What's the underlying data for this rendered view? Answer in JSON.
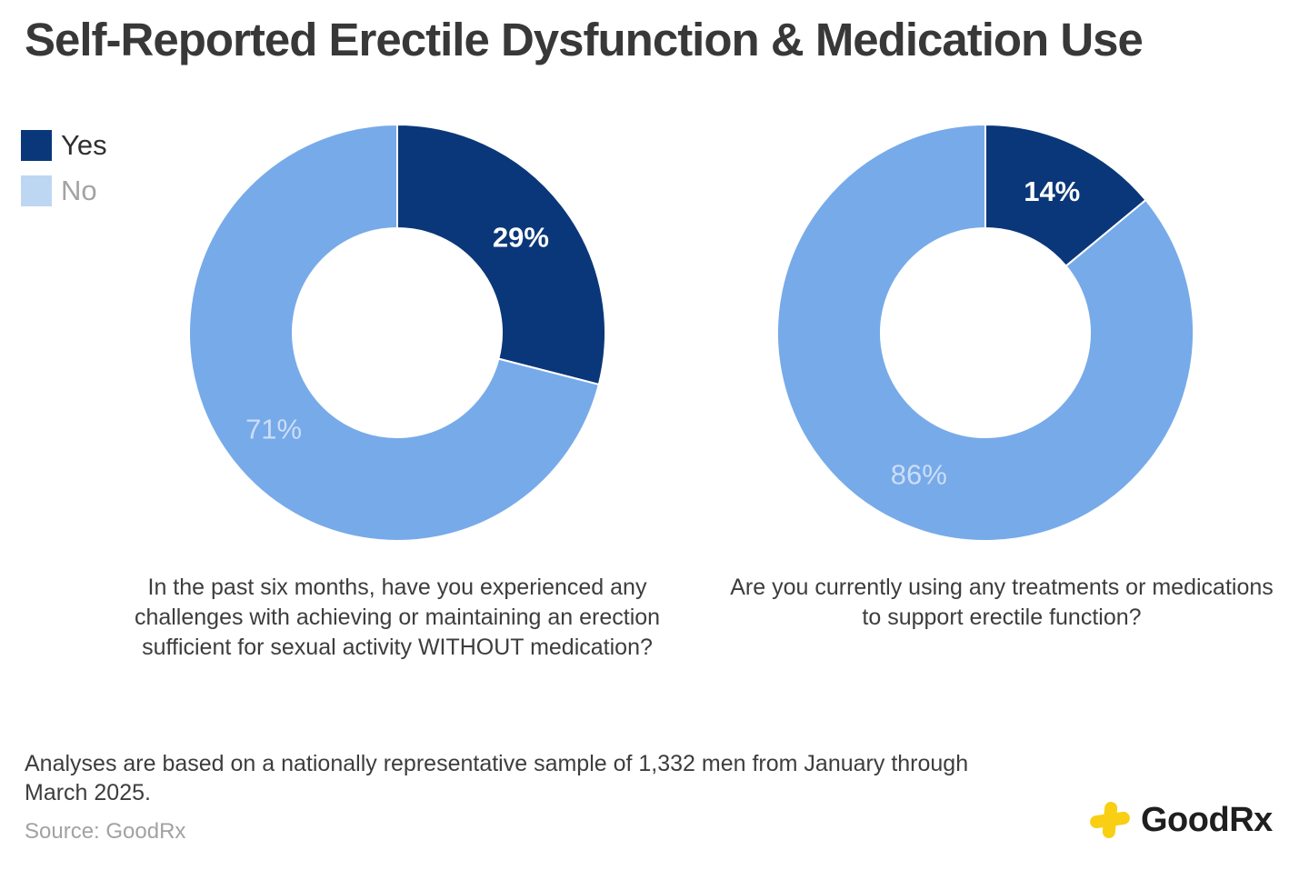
{
  "title": "Self-Reported Erectile Dysfunction & Medication Use",
  "legend": {
    "items": [
      {
        "label": "Yes",
        "color": "#0a3779",
        "text_color": "#2f2f2f"
      },
      {
        "label": "No",
        "color": "#bdd7f3",
        "text_color": "#a3a3a3"
      }
    ]
  },
  "chart_data": [
    {
      "type": "pie",
      "subtype": "donut",
      "question": "In the past six months, have you experienced any challenges with achieving or maintaining an erection sufficient for sexual activity WITHOUT medication?",
      "categories": [
        "Yes",
        "No"
      ],
      "values": [
        29,
        71
      ],
      "labels": [
        "29%",
        "71%"
      ],
      "colors": [
        "#0a3779",
        "#77aae9"
      ],
      "label_colors": [
        "#ffffff",
        "#cbdef6"
      ],
      "start_angle_deg": 0,
      "direction": "clockwise",
      "legend_position": "top-left"
    },
    {
      "type": "pie",
      "subtype": "donut",
      "question": "Are you currently using any treatments or medications to support erectile function?",
      "categories": [
        "Yes",
        "No"
      ],
      "values": [
        14,
        86
      ],
      "labels": [
        "14%",
        "86%"
      ],
      "colors": [
        "#0a3779",
        "#77aae9"
      ],
      "label_colors": [
        "#ffffff",
        "#cbdef6"
      ],
      "start_angle_deg": 0,
      "direction": "clockwise",
      "legend_position": "top-left"
    }
  ],
  "footnote": "Analyses are based on a nationally representative sample of 1,332 men from January through March 2025.",
  "source": "Source: GoodRx",
  "logo": {
    "text": "GoodRx",
    "plus_color": "#f8cf12",
    "text_color": "#1f1f1f"
  }
}
